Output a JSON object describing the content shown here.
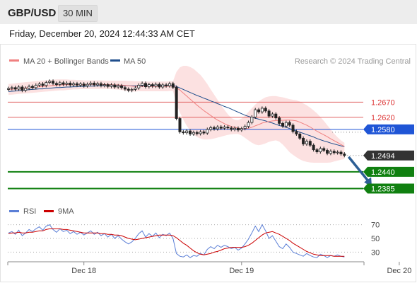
{
  "header": {
    "symbol": "GBP/USD",
    "timeframe": "30 MIN"
  },
  "datetime": "Friday, December 20, 2024 12:44:33 AM CET",
  "legend": {
    "ma20": {
      "label": "MA 20 + Bollinger Bands",
      "color": "#f08080"
    },
    "ma50": {
      "label": "MA 50",
      "color": "#1f4e8c"
    },
    "credit": "Research © 2024 Trading Central"
  },
  "rsi_legend": {
    "rsi": {
      "label": "RSI",
      "color": "#5b7fd6"
    },
    "ma9": {
      "label": "9MA",
      "color": "#cc0000"
    }
  },
  "chart_data": [
    {
      "type": "candlestick",
      "title": "",
      "ylim": [
        1.2358,
        1.2755
      ],
      "x_ticks": [
        {
          "label": "Dec 18",
          "index": 22
        },
        {
          "label": "Dec 19",
          "index": 68
        },
        {
          "label": "Dec 20",
          "index": 114
        }
      ],
      "levels": [
        {
          "value": 1.267,
          "label": "1.2670",
          "kind": "resistance",
          "color": "#e06060"
        },
        {
          "value": 1.262,
          "label": "1.2620",
          "kind": "resistance",
          "color": "#e06060"
        },
        {
          "value": 1.258,
          "label": "1.2580",
          "kind": "pivot",
          "color": "#1f55d6"
        },
        {
          "value": 1.2494,
          "label": "1.2494",
          "kind": "last",
          "color": "#333333"
        },
        {
          "value": 1.244,
          "label": "1.2440",
          "kind": "target",
          "color": "#108010"
        },
        {
          "value": 1.2385,
          "label": "1.2385",
          "kind": "target",
          "color": "#108010"
        }
      ],
      "close": [
        1.2715,
        1.2718,
        1.2713,
        1.272,
        1.2709,
        1.2716,
        1.2722,
        1.2718,
        1.2726,
        1.273,
        1.2725,
        1.2735,
        1.2739,
        1.2732,
        1.2728,
        1.2734,
        1.2729,
        1.2733,
        1.2727,
        1.2731,
        1.2726,
        1.273,
        1.2724,
        1.2729,
        1.2733,
        1.2727,
        1.2731,
        1.2725,
        1.2728,
        1.2722,
        1.2727,
        1.272,
        1.2724,
        1.2718,
        1.2713,
        1.2709,
        1.2712,
        1.2717,
        1.2726,
        1.2732,
        1.2721,
        1.2728,
        1.2723,
        1.2729,
        1.272,
        1.2727,
        1.2724,
        1.2731,
        1.2719,
        1.2616,
        1.2572,
        1.2569,
        1.2575,
        1.2565,
        1.257,
        1.2566,
        1.2572,
        1.2568,
        1.258,
        1.2586,
        1.2582,
        1.2588,
        1.2584,
        1.2588,
        1.2585,
        1.258,
        1.2584,
        1.2578,
        1.2583,
        1.259,
        1.2603,
        1.2621,
        1.2645,
        1.2638,
        1.265,
        1.2641,
        1.2624,
        1.2631,
        1.2618,
        1.26,
        1.2591,
        1.2603,
        1.2594,
        1.2573,
        1.2565,
        1.2551,
        1.2532,
        1.2541,
        1.2528,
        1.2513,
        1.2506,
        1.2517,
        1.2511,
        1.2501,
        1.2508,
        1.2503,
        1.2505,
        1.2499,
        1.2494
      ],
      "ma20": [
        1.2712,
        1.2713,
        1.2714,
        1.2715,
        1.2716,
        1.2717,
        1.2718,
        1.2719,
        1.272,
        1.2721,
        1.2722,
        1.2723,
        1.2724,
        1.2725,
        1.2726,
        1.2727,
        1.2727,
        1.2728,
        1.2728,
        1.2728,
        1.2728,
        1.2728,
        1.2728,
        1.2728,
        1.2729,
        1.2729,
        1.2729,
        1.2729,
        1.2728,
        1.2728,
        1.2728,
        1.2727,
        1.2727,
        1.2726,
        1.2725,
        1.2724,
        1.2723,
        1.2722,
        1.2722,
        1.2722,
        1.2722,
        1.2722,
        1.2722,
        1.2722,
        1.2722,
        1.2722,
        1.2722,
        1.2723,
        1.2723,
        1.2718,
        1.271,
        1.27,
        1.269,
        1.268,
        1.267,
        1.266,
        1.2651,
        1.2642,
        1.2634,
        1.2626,
        1.2618,
        1.2611,
        1.2605,
        1.2599,
        1.2594,
        1.259,
        1.2587,
        1.2584,
        1.2582,
        1.2582,
        1.2584,
        1.2587,
        1.2592,
        1.2596,
        1.2601,
        1.2604,
        1.2606,
        1.2608,
        1.2609,
        1.261,
        1.261,
        1.2611,
        1.2611,
        1.261,
        1.2608,
        1.2604,
        1.2599,
        1.2594,
        1.2588,
        1.2581,
        1.2574,
        1.2568,
        1.2562,
        1.2556,
        1.2549,
        1.2543,
        1.2537,
        1.253,
        1.2524
      ],
      "bb_upper": [
        1.273,
        1.2731,
        1.2732,
        1.2734,
        1.2735,
        1.2736,
        1.2737,
        1.2738,
        1.2739,
        1.274,
        1.2741,
        1.2742,
        1.2743,
        1.2744,
        1.2745,
        1.2745,
        1.2745,
        1.2745,
        1.2744,
        1.2744,
        1.2743,
        1.2743,
        1.2742,
        1.2742,
        1.2742,
        1.2742,
        1.2742,
        1.2742,
        1.2741,
        1.2741,
        1.2741,
        1.2741,
        1.2741,
        1.2741,
        1.2741,
        1.274,
        1.274,
        1.2739,
        1.2739,
        1.2738,
        1.2738,
        1.2738,
        1.2738,
        1.2738,
        1.2738,
        1.2738,
        1.2738,
        1.2739,
        1.2739,
        1.277,
        1.2785,
        1.279,
        1.279,
        1.2786,
        1.278,
        1.277,
        1.276,
        1.2746,
        1.273,
        1.2712,
        1.2695,
        1.2678,
        1.266,
        1.2645,
        1.263,
        1.2618,
        1.2612,
        1.2611,
        1.2616,
        1.2625,
        1.2638,
        1.265,
        1.2662,
        1.2672,
        1.268,
        1.2686,
        1.2689,
        1.269,
        1.269,
        1.2688,
        1.2686,
        1.2683,
        1.268,
        1.2678,
        1.2676,
        1.2672,
        1.2666,
        1.266,
        1.2652,
        1.2643,
        1.2633,
        1.2621,
        1.2608,
        1.2594,
        1.258,
        1.2566,
        1.2554,
        1.2544,
        1.2536
      ],
      "bb_lower": [
        1.2694,
        1.2695,
        1.2696,
        1.2697,
        1.2698,
        1.2699,
        1.27,
        1.2701,
        1.2702,
        1.2703,
        1.2704,
        1.2705,
        1.2706,
        1.2707,
        1.2708,
        1.2709,
        1.2709,
        1.271,
        1.2711,
        1.2712,
        1.2712,
        1.2713,
        1.2713,
        1.2713,
        1.2714,
        1.2714,
        1.2714,
        1.2714,
        1.2714,
        1.2714,
        1.2713,
        1.2712,
        1.2711,
        1.271,
        1.2708,
        1.2706,
        1.2705,
        1.2705,
        1.2706,
        1.2706,
        1.2706,
        1.2706,
        1.2706,
        1.2706,
        1.2706,
        1.2706,
        1.2706,
        1.2707,
        1.2707,
        1.2664,
        1.2636,
        1.2612,
        1.2592,
        1.2576,
        1.2563,
        1.2555,
        1.255,
        1.2547,
        1.2547,
        1.2548,
        1.255,
        1.2553,
        1.2556,
        1.2559,
        1.2562,
        1.2564,
        1.2565,
        1.2565,
        1.256,
        1.2552,
        1.2544,
        1.2536,
        1.253,
        1.2528,
        1.253,
        1.2534,
        1.2539,
        1.2542,
        1.2544,
        1.254,
        1.253,
        1.2518,
        1.2505,
        1.2496,
        1.2488,
        1.2481,
        1.2476,
        1.2473,
        1.2471,
        1.247,
        1.247,
        1.247,
        1.247,
        1.247,
        1.2471,
        1.2474,
        1.2477,
        1.248,
        1.2482
      ],
      "ma50": [
        1.2705,
        1.2706,
        1.2707,
        1.2708,
        1.2709,
        1.271,
        1.2711,
        1.2712,
        1.2713,
        1.2714,
        1.2714,
        1.2715,
        1.2716,
        1.2717,
        1.2718,
        1.2718,
        1.2719,
        1.272,
        1.272,
        1.2721,
        1.2721,
        1.2722,
        1.2722,
        1.2723,
        1.2723,
        1.2723,
        1.2724,
        1.2724,
        1.2724,
        1.2724,
        1.2724,
        1.2724,
        1.2724,
        1.2724,
        1.2724,
        1.2724,
        1.2724,
        1.2724,
        1.2724,
        1.2725,
        1.2725,
        1.2725,
        1.2725,
        1.2725,
        1.2725,
        1.2725,
        1.2725,
        1.2725,
        1.2725,
        1.2722,
        1.2717,
        1.2712,
        1.2707,
        1.2702,
        1.2697,
        1.2692,
        1.2688,
        1.2683,
        1.2679,
        1.2674,
        1.267,
        1.2665,
        1.2661,
        1.2656,
        1.2652,
        1.2647,
        1.2642,
        1.2637,
        1.2632,
        1.2627,
        1.2623,
        1.262,
        1.2617,
        1.2614,
        1.2611,
        1.2608,
        1.2604,
        1.2601,
        1.2597,
        1.2593,
        1.259,
        1.2587,
        1.2583,
        1.2579,
        1.2575,
        1.2571,
        1.2567,
        1.2563,
        1.2559,
        1.2555,
        1.255,
        1.2546,
        1.2542,
        1.2539,
        1.2535,
        1.2532,
        1.2529,
        1.2526,
        1.2523
      ],
      "projection": {
        "from": 1.2494,
        "to": 1.2385,
        "bars_ahead": 8
      }
    },
    {
      "type": "line",
      "title": "",
      "ylim": [
        18,
        82
      ],
      "y_ticks": [
        70,
        50,
        30
      ],
      "series": [
        {
          "name": "RSI",
          "values": [
            58,
            60,
            56,
            62,
            54,
            58,
            63,
            60,
            64,
            67,
            62,
            68,
            70,
            63,
            59,
            64,
            60,
            62,
            57,
            60,
            56,
            59,
            55,
            58,
            61,
            56,
            59,
            54,
            57,
            52,
            56,
            50,
            54,
            49,
            45,
            42,
            45,
            50,
            57,
            61,
            52,
            57,
            53,
            58,
            51,
            56,
            54,
            58,
            50,
            28,
            24,
            23,
            26,
            22,
            25,
            24,
            28,
            26,
            34,
            38,
            35,
            40,
            37,
            40,
            38,
            35,
            37,
            33,
            36,
            42,
            49,
            58,
            68,
            60,
            70,
            61,
            50,
            54,
            46,
            38,
            35,
            42,
            37,
            30,
            28,
            26,
            24,
            28,
            25,
            23,
            22,
            27,
            25,
            22,
            25,
            24,
            26,
            24,
            23
          ]
        },
        {
          "name": "9MA",
          "values": [
            57,
            58,
            58,
            59,
            58,
            58,
            59,
            59,
            60,
            61,
            61,
            63,
            64,
            64,
            64,
            64,
            63,
            63,
            62,
            61,
            60,
            59,
            58,
            58,
            58,
            58,
            58,
            57,
            57,
            56,
            56,
            55,
            55,
            54,
            52,
            50,
            49,
            48,
            49,
            50,
            51,
            52,
            53,
            54,
            55,
            55,
            55,
            55,
            54,
            51,
            47,
            43,
            40,
            36,
            32,
            29,
            27,
            26,
            27,
            28,
            30,
            31,
            33,
            35,
            36,
            37,
            37,
            37,
            37,
            38,
            40,
            43,
            47,
            51,
            55,
            58,
            59,
            60,
            58,
            56,
            53,
            50,
            47,
            43,
            40,
            37,
            34,
            31,
            29,
            27,
            26,
            25,
            25,
            25,
            25,
            24,
            24,
            24,
            24
          ]
        }
      ]
    }
  ]
}
